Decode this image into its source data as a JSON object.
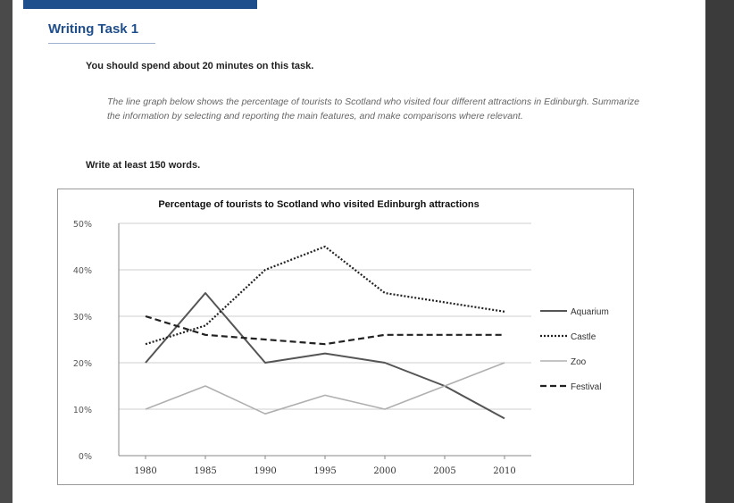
{
  "header": {
    "title": "Writing Task 1"
  },
  "instructions": {
    "time": "You should spend about 20 minutes on this task.",
    "prompt": "The line graph below shows the percentage of tourists to Scotland who visited four different attractions in Edinburgh. Summarize the information by selecting and reporting the main features, and make comparisons where relevant.",
    "words": "Write at least 150 words."
  },
  "colors": {
    "accent": "#1f4e8c"
  },
  "chart_data": {
    "type": "line",
    "title": "Percentage of tourists to Scotland who visited Edinburgh attractions",
    "x": [
      1980,
      1985,
      1990,
      1995,
      2000,
      2005,
      2010
    ],
    "x_tick_labels": [
      "1980",
      "1985",
      "1990",
      "1995",
      "2000",
      "2005",
      "2010"
    ],
    "y_tick_labels": [
      "0%",
      "10%",
      "20%",
      "30%",
      "40%",
      "50%"
    ],
    "ylim": [
      0,
      50
    ],
    "grid": true,
    "legend_position": "right",
    "series": [
      {
        "name": "Aquarium",
        "style": "solid",
        "color": "#555555",
        "values": [
          20,
          35,
          20,
          22,
          20,
          15,
          8
        ]
      },
      {
        "name": "Castle",
        "style": "dotted",
        "color": "#222222",
        "values": [
          24,
          28,
          40,
          45,
          35,
          33,
          31
        ]
      },
      {
        "name": "Zoo",
        "style": "solid-light",
        "color": "#b0b0b0",
        "values": [
          10,
          15,
          9,
          13,
          10,
          15,
          20
        ]
      },
      {
        "name": "Festival",
        "style": "dashed",
        "color": "#222222",
        "values": [
          30,
          26,
          25,
          24,
          26,
          26,
          26
        ]
      }
    ]
  }
}
